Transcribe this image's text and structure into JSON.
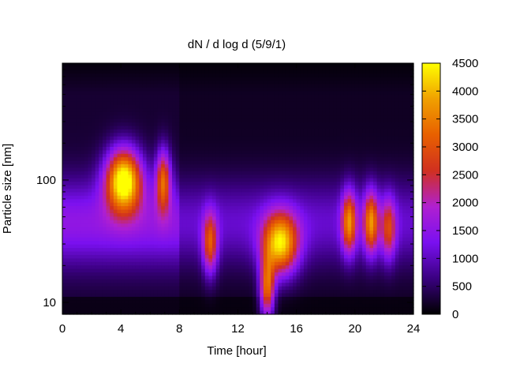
{
  "chart_data": {
    "type": "heatmap",
    "title": "dN / d log d (5/9/1)",
    "xlabel": "Time [hour]",
    "ylabel": "Particle size [nm]",
    "xlim": [
      0,
      24
    ],
    "ylim": [
      8,
      900
    ],
    "y_scale": "log",
    "x_ticks": [
      "0",
      "4",
      "8",
      "12",
      "16",
      "20",
      "24"
    ],
    "x_tick_values": [
      0,
      4,
      8,
      12,
      16,
      20,
      24
    ],
    "y_ticks": [
      "10",
      "100"
    ],
    "y_tick_values": [
      10,
      100
    ],
    "colorbar": {
      "range": [
        0,
        4500
      ],
      "ticks": [
        "0",
        "500",
        "1000",
        "1500",
        "2000",
        "2500",
        "3000",
        "3500",
        "4000",
        "4500"
      ],
      "tick_values": [
        0,
        500,
        1000,
        1500,
        2000,
        2500,
        3000,
        3500,
        4000,
        4500
      ],
      "palette": [
        "#000000",
        "#3a0080",
        "#7a10f0",
        "#b020d0",
        "#d03020",
        "#e86000",
        "#f0a000",
        "#ffff00"
      ]
    },
    "grid": false,
    "blobs": [
      {
        "t": 4.2,
        "d": 100,
        "peak": 4300
      },
      {
        "t": 6.9,
        "d": 100,
        "peak": 2600
      },
      {
        "t": 10.1,
        "d": 30,
        "peak": 2300
      },
      {
        "t": 14.0,
        "d": 13,
        "peak": 2900
      },
      {
        "t": 14.9,
        "d": 30,
        "peak": 3600
      },
      {
        "t": 19.6,
        "d": 45,
        "peak": 2700
      },
      {
        "t": 21.1,
        "d": 45,
        "peak": 2700
      },
      {
        "t": 22.3,
        "d": 40,
        "peak": 1900
      }
    ]
  }
}
